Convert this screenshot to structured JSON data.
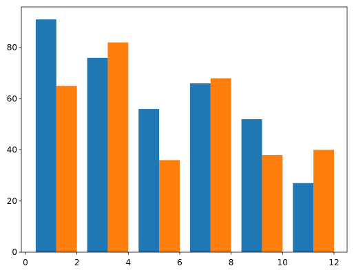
{
  "chart_data": {
    "type": "bar",
    "series": [
      {
        "color": "#1f77b4",
        "x": [
          0.8,
          2.8,
          4.8,
          6.8,
          8.8,
          10.8
        ],
        "values": [
          91,
          76,
          56,
          66,
          52,
          27
        ]
      },
      {
        "color": "#ff7f0e",
        "x": [
          1.6,
          3.6,
          5.6,
          7.6,
          9.6,
          11.6
        ],
        "values": [
          65,
          82,
          36,
          68,
          38,
          40
        ]
      }
    ],
    "bar_width": 0.8,
    "xlim": [
      -0.16,
      12.51
    ],
    "xticks": [
      0,
      2,
      4,
      6,
      8,
      10,
      12
    ],
    "ylim": [
      0,
      95.9
    ],
    "yticks": [
      0,
      20,
      40,
      60,
      80
    ],
    "grid": false
  }
}
